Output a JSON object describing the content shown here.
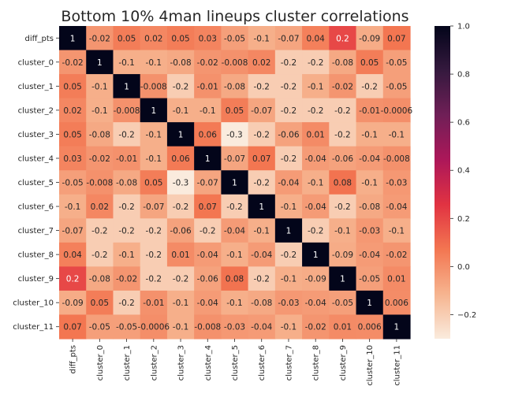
{
  "chart_data": {
    "type": "heatmap",
    "title": "Bottom 10% 4man lineups cluster correlations",
    "xlabel": "",
    "ylabel": "",
    "labels": [
      "diff_pts",
      "cluster_0",
      "cluster_1",
      "cluster_2",
      "cluster_3",
      "cluster_4",
      "cluster_5",
      "cluster_6",
      "cluster_7",
      "cluster_8",
      "cluster_9",
      "cluster_10",
      "cluster_11"
    ],
    "values": [
      [
        1,
        -0.02,
        0.05,
        0.02,
        0.05,
        0.03,
        -0.05,
        -0.1,
        -0.07,
        0.04,
        0.2,
        -0.09,
        0.07
      ],
      [
        -0.02,
        1,
        -0.1,
        -0.1,
        -0.08,
        -0.02,
        -0.008,
        0.02,
        -0.2,
        -0.2,
        -0.08,
        0.05,
        -0.05
      ],
      [
        0.05,
        -0.1,
        1,
        -0.008,
        -0.2,
        -0.01,
        -0.08,
        -0.2,
        -0.2,
        -0.1,
        -0.02,
        -0.2,
        -0.05
      ],
      [
        0.02,
        -0.1,
        -0.008,
        1,
        -0.1,
        -0.1,
        0.05,
        -0.07,
        -0.2,
        -0.2,
        -0.2,
        -0.01,
        -0.0006
      ],
      [
        0.05,
        -0.08,
        -0.2,
        -0.1,
        1,
        0.06,
        -0.3,
        -0.2,
        -0.06,
        0.01,
        -0.2,
        -0.1,
        -0.1
      ],
      [
        0.03,
        -0.02,
        -0.01,
        -0.1,
        0.06,
        1,
        -0.07,
        0.07,
        -0.2,
        -0.04,
        -0.06,
        -0.04,
        -0.008
      ],
      [
        -0.05,
        -0.008,
        -0.08,
        0.05,
        -0.3,
        -0.07,
        1,
        -0.2,
        -0.04,
        -0.1,
        0.08,
        -0.1,
        -0.03
      ],
      [
        -0.1,
        0.02,
        -0.2,
        -0.07,
        -0.2,
        0.07,
        -0.2,
        1,
        -0.1,
        -0.04,
        -0.2,
        -0.08,
        -0.04
      ],
      [
        -0.07,
        -0.2,
        -0.2,
        -0.2,
        -0.06,
        -0.2,
        -0.04,
        -0.1,
        1,
        -0.2,
        -0.1,
        -0.03,
        -0.1
      ],
      [
        0.04,
        -0.2,
        -0.1,
        -0.2,
        0.01,
        -0.04,
        -0.1,
        -0.04,
        -0.2,
        1,
        -0.09,
        -0.04,
        -0.02
      ],
      [
        0.2,
        -0.08,
        -0.02,
        -0.2,
        -0.2,
        -0.06,
        0.08,
        -0.2,
        -0.1,
        -0.09,
        1,
        -0.05,
        0.01
      ],
      [
        -0.09,
        0.05,
        -0.2,
        -0.01,
        -0.1,
        -0.04,
        -0.1,
        -0.08,
        -0.03,
        -0.04,
        -0.05,
        1,
        0.006
      ],
      [
        0.07,
        -0.05,
        -0.05,
        -0.0006,
        -0.1,
        -0.008,
        -0.03,
        -0.04,
        -0.1,
        -0.02,
        0.01,
        0.006,
        1
      ]
    ],
    "colorbar": {
      "min": -0.3,
      "max": 1.0,
      "ticks": [
        -0.2,
        0.0,
        0.2,
        0.4,
        0.6,
        0.8,
        1.0
      ],
      "tick_labels": [
        "−0.2",
        "0.0",
        "0.2",
        "0.4",
        "0.6",
        "0.8",
        "1.0"
      ],
      "colormap": "rocket_r",
      "colormap_stops": [
        "#faebdd",
        "#f6b48f",
        "#f37651",
        "#e13342",
        "#ad1759",
        "#701f57",
        "#35193e",
        "#03051a"
      ]
    },
    "annotate": true,
    "grid": false
  }
}
